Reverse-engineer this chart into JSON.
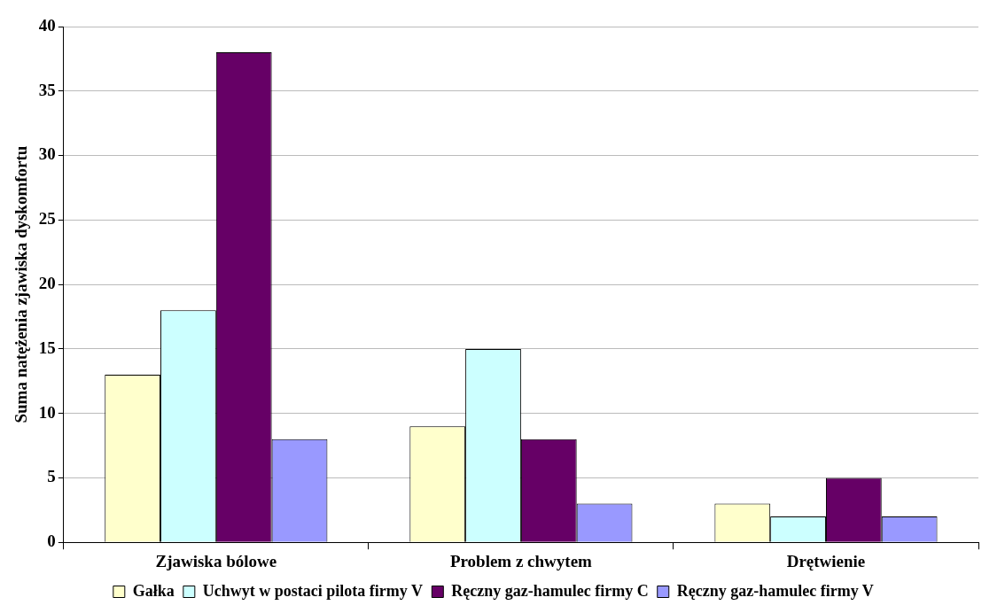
{
  "chart_data": {
    "type": "bar",
    "ylabel": "Suma natężenia zjawiska dyskomfortu",
    "categories": [
      "Zjawiska bólowe",
      "Problem z chwytem",
      "Drętwienie"
    ],
    "series": [
      {
        "name": "Gałka",
        "color": "#ffffcc",
        "values": [
          13,
          9,
          3
        ]
      },
      {
        "name": "Uchwyt w postaci pilota firmy V",
        "color": "#ccffff",
        "values": [
          18,
          15,
          2
        ]
      },
      {
        "name": "Ręczny gaz-hamulec firmy C",
        "color": "#660066",
        "values": [
          38,
          8,
          5
        ]
      },
      {
        "name": "Ręczny gaz-hamulec firmy V",
        "color": "#9999ff",
        "values": [
          8,
          3,
          2
        ]
      }
    ],
    "ylim": [
      0,
      40
    ],
    "yticks": [
      0,
      5,
      10,
      15,
      20,
      25,
      30,
      35,
      40
    ],
    "grid": "y",
    "legend": "bottom"
  }
}
